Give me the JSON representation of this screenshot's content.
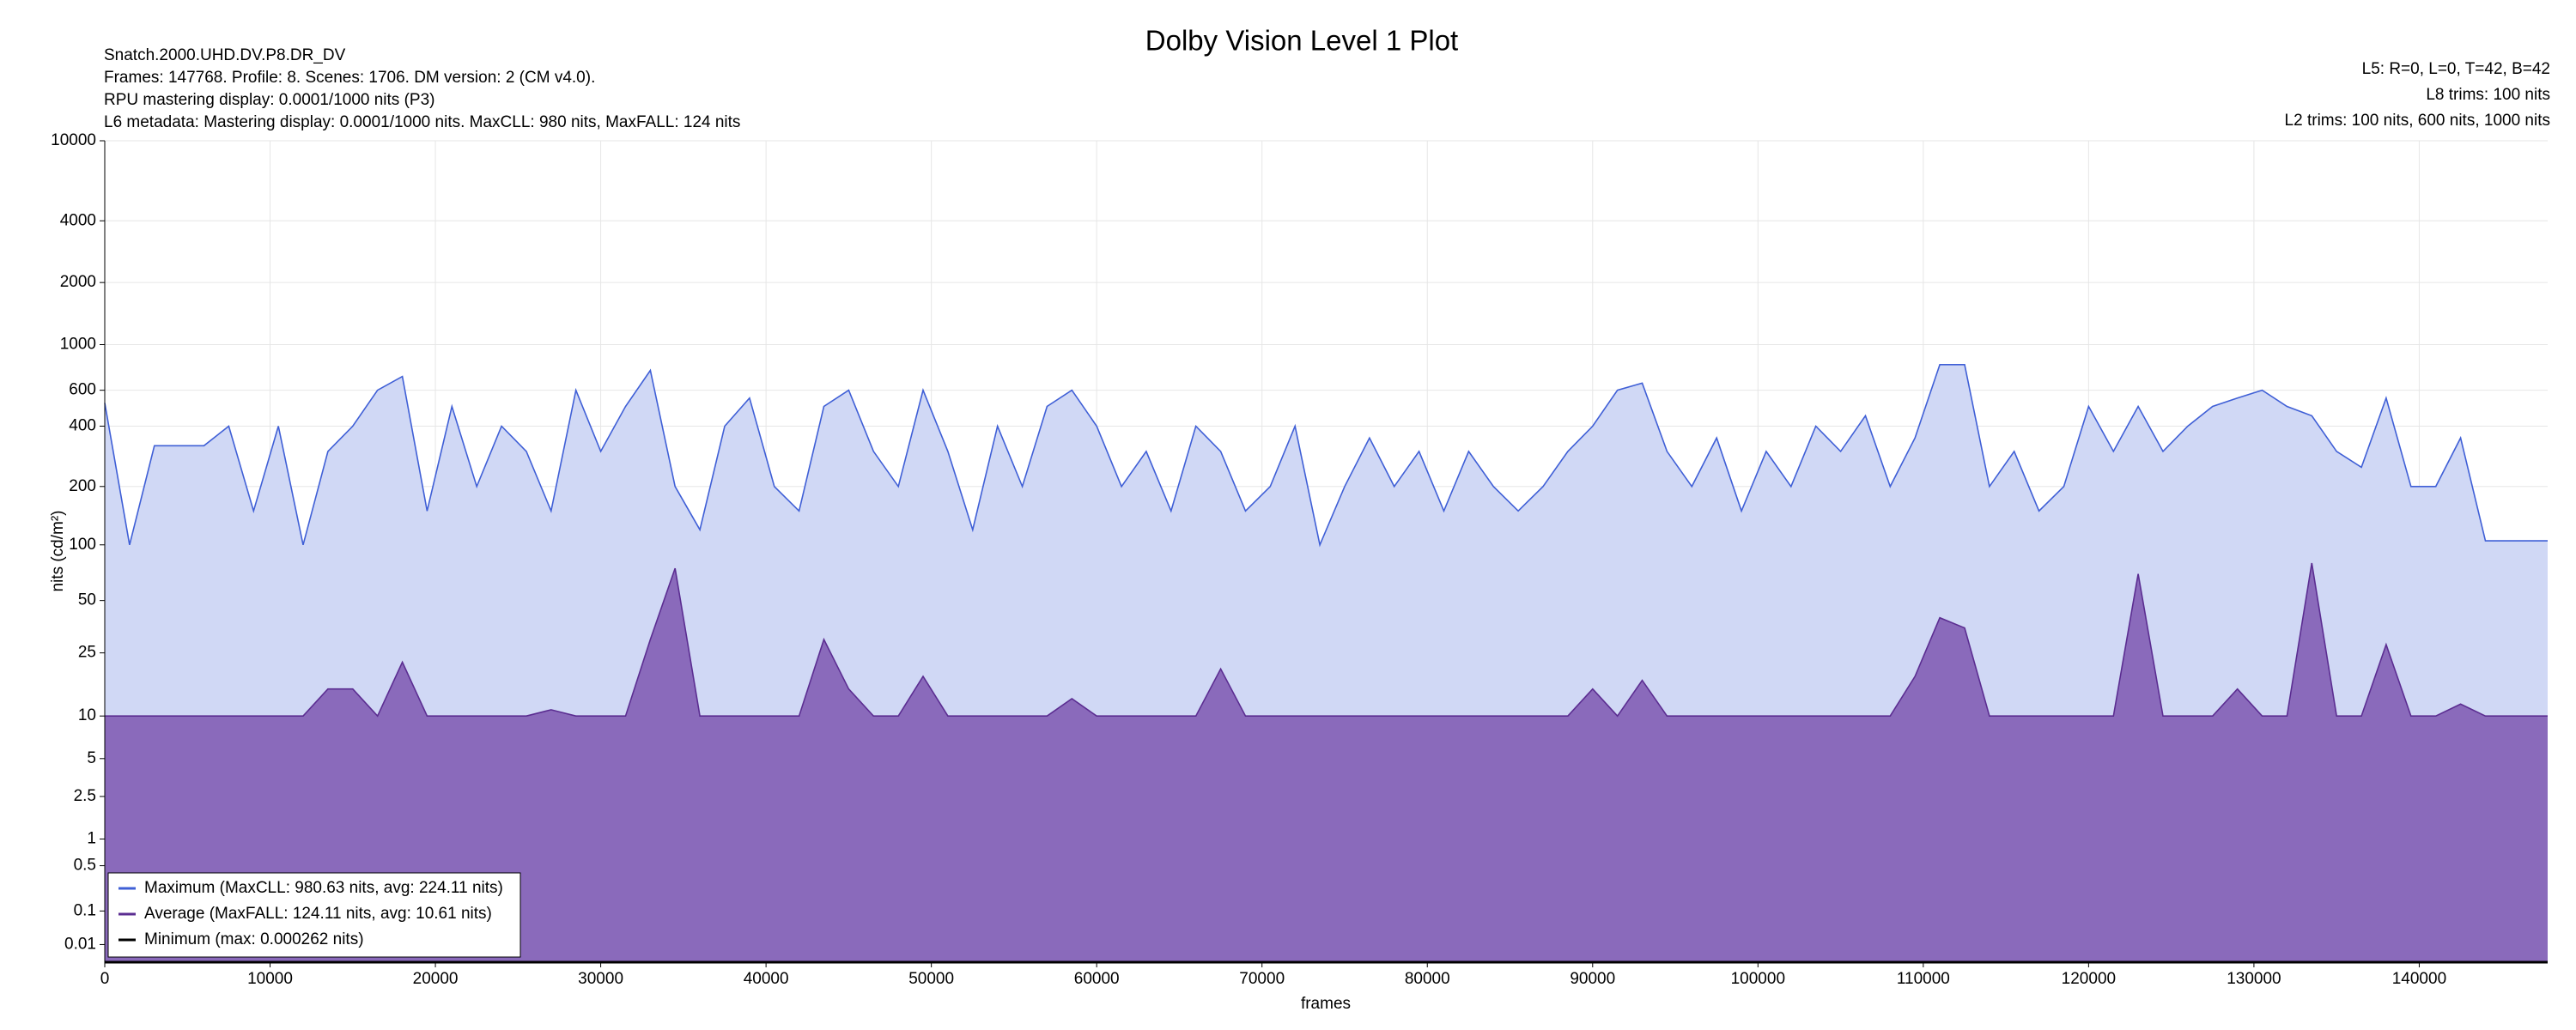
{
  "chart_data": {
    "type": "area",
    "title": "Dolby Vision Level 1 Plot",
    "header_left": [
      "Snatch.2000.UHD.DV.P8.DR_DV",
      "Frames: 147768. Profile: 8. Scenes: 1706. DM version: 2 (CM v4.0).",
      "RPU mastering display: 0.0001/1000 nits  (P3)",
      "L6 metadata: Mastering display: 0.0001/1000 nits. MaxCLL: 980 nits, MaxFALL: 124 nits"
    ],
    "header_right": [
      "L5: R=0, L=0, T=42, B=42",
      "L8 trims: 100 nits",
      "L2 trims: 100 nits, 600 nits, 1000 nits"
    ],
    "xlabel": "frames",
    "ylabel": "nits (cd/m²)",
    "yscale": "pq",
    "grid": true,
    "legend": "lower left",
    "xlim": [
      0,
      147768
    ],
    "ylim": [
      0,
      10000
    ],
    "xticks": [
      0,
      10000,
      20000,
      30000,
      40000,
      50000,
      60000,
      70000,
      80000,
      90000,
      100000,
      110000,
      120000,
      130000,
      140000
    ],
    "yticks": [
      0.01,
      0.1,
      0.5,
      1,
      2.5,
      5,
      10,
      25,
      50,
      100,
      200,
      400,
      600,
      1000,
      2000,
      4000,
      10000
    ],
    "x": [
      0,
      1500,
      3000,
      6000,
      7500,
      9000,
      10500,
      12000,
      13500,
      15000,
      16500,
      18000,
      19500,
      21000,
      22500,
      24000,
      25500,
      27000,
      28500,
      30000,
      31500,
      33000,
      34500,
      36000,
      37500,
      39000,
      40500,
      42000,
      43500,
      45000,
      46500,
      48000,
      49500,
      51000,
      52500,
      54000,
      55500,
      57000,
      58500,
      60000,
      61500,
      63000,
      64500,
      66000,
      67500,
      69000,
      70500,
      72000,
      73500,
      75000,
      76500,
      78000,
      79500,
      81000,
      82500,
      84000,
      85500,
      87000,
      88500,
      90000,
      91500,
      93000,
      94500,
      96000,
      97500,
      99000,
      100500,
      102000,
      103500,
      105000,
      106500,
      108000,
      109500,
      111000,
      112500,
      114000,
      115500,
      117000,
      118500,
      120000,
      121500,
      123000,
      124500,
      126000,
      127500,
      129000,
      130500,
      132000,
      133500,
      135000,
      136500,
      138000,
      139500,
      141000,
      142500,
      144000,
      147768
    ],
    "series": [
      {
        "name": "Maximum (MaxCLL: 980.63 nits, avg: 224.11 nits)",
        "color": "#3f5fd6",
        "fill": "#d0d8f5",
        "values": [
          520,
          100,
          320,
          320,
          400,
          150,
          400,
          100,
          300,
          400,
          600,
          700,
          150,
          500,
          200,
          400,
          300,
          150,
          600,
          300,
          500,
          750,
          200,
          120,
          400,
          550,
          200,
          150,
          500,
          600,
          300,
          200,
          600,
          300,
          120,
          400,
          200,
          500,
          600,
          400,
          200,
          300,
          150,
          400,
          300,
          150,
          200,
          400,
          100,
          200,
          350,
          200,
          300,
          150,
          300,
          200,
          150,
          200,
          300,
          400,
          600,
          650,
          300,
          200,
          350,
          150,
          300,
          200,
          400,
          300,
          450,
          200,
          350,
          800,
          800,
          200,
          300,
          150,
          200,
          500,
          300,
          500,
          300,
          400,
          500,
          550,
          600,
          500,
          450,
          300,
          250,
          550,
          200,
          200,
          350,
          105,
          105
        ]
      },
      {
        "name": "Average (MaxFALL: 124.11 nits, avg: 10.61 nits)",
        "color": "#5b2d91",
        "fill": "#8a6abb",
        "values": [
          10,
          10,
          10,
          10,
          10,
          10,
          10,
          10,
          15,
          15,
          10,
          22,
          10,
          10,
          10,
          10,
          10,
          11,
          10,
          10,
          10,
          30,
          75,
          10,
          10,
          10,
          10,
          10,
          30,
          15,
          10,
          10,
          18,
          10,
          10,
          10,
          10,
          10,
          13,
          10,
          10,
          10,
          10,
          10,
          20,
          10,
          10,
          10,
          10,
          10,
          10,
          10,
          10,
          10,
          10,
          10,
          10,
          10,
          10,
          15,
          10,
          17,
          10,
          10,
          10,
          10,
          10,
          10,
          10,
          10,
          10,
          10,
          18,
          40,
          35,
          10,
          10,
          10,
          10,
          10,
          10,
          70,
          10,
          10,
          10,
          15,
          10,
          10,
          80,
          10,
          10,
          28,
          10,
          10,
          12,
          10,
          10
        ]
      },
      {
        "name": "Minimum (max: 0.000262 nits)",
        "color": "#000000",
        "fill": "none",
        "values": [
          0,
          0,
          0,
          0,
          0,
          0,
          0,
          0,
          0,
          0,
          0,
          0,
          0,
          0,
          0,
          0,
          0,
          0,
          0,
          0,
          0,
          0,
          0,
          0,
          0,
          0,
          0,
          0,
          0,
          0,
          0,
          0,
          0,
          0,
          0,
          0,
          0,
          0,
          0,
          0,
          0,
          0,
          0,
          0,
          0,
          0,
          0,
          0,
          0,
          0,
          0,
          0,
          0,
          0,
          0,
          0,
          0,
          0,
          0,
          0,
          0,
          0,
          0,
          0,
          0,
          0,
          0,
          0,
          0,
          0,
          0,
          0,
          0,
          0,
          0,
          0,
          0,
          0,
          0,
          0,
          0,
          0,
          0,
          0,
          0,
          0,
          0,
          0,
          0,
          0,
          0,
          0,
          0,
          0,
          0,
          0,
          0
        ]
      }
    ]
  }
}
